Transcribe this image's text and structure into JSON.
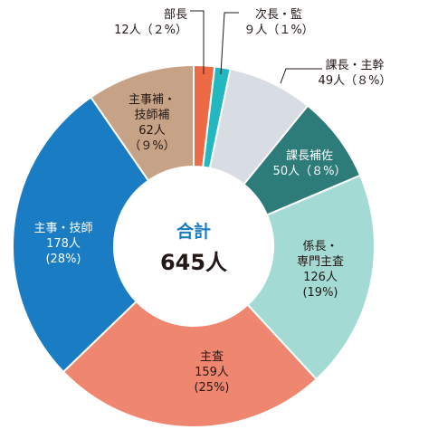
{
  "chart_data": {
    "type": "pie",
    "variant": "donut",
    "center_title": "合計",
    "center_total": "645人",
    "slices": [
      {
        "lines": [
          "部長",
          "12人（２%）"
        ],
        "value": 12,
        "percent": 2,
        "color": "#ec6a45",
        "text_color": "#231815"
      },
      {
        "lines": [
          "次長・監",
          "９人（１%）"
        ],
        "value": 9,
        "percent": 1,
        "color": "#23b7bf",
        "text_color": "#231815"
      },
      {
        "lines": [
          "課長・主幹",
          "49人（８%）"
        ],
        "value": 49,
        "percent": 8,
        "color": "#d7dde2",
        "text_color": "#231815"
      },
      {
        "lines": [
          "課長補佐",
          "50人（８%）"
        ],
        "value": 50,
        "percent": 8,
        "color": "#2d7c79",
        "text_color": "#ffffff"
      },
      {
        "lines": [
          "係長・",
          "専門主査",
          "126人",
          "(19%)"
        ],
        "value": 126,
        "percent": 19,
        "color": "#a3dbd4",
        "text_color": "#231815"
      },
      {
        "lines": [
          "主査",
          "159人",
          "(25%)"
        ],
        "value": 159,
        "percent": 25,
        "color": "#ee8670",
        "text_color": "#231815"
      },
      {
        "lines": [
          "主事・技師",
          "178人",
          "(28%)"
        ],
        "value": 178,
        "percent": 28,
        "color": "#1a7cc2",
        "text_color": "#ffffff"
      },
      {
        "lines": [
          "主事補・",
          "技師補",
          "62人",
          "（９%）"
        ],
        "value": 62,
        "percent": 9,
        "color": "#c6a287",
        "text_color": "#231815"
      }
    ],
    "colors": {
      "center_title": "#1a7cc2",
      "center_total": "#231815",
      "leader_line": "#231815"
    }
  }
}
